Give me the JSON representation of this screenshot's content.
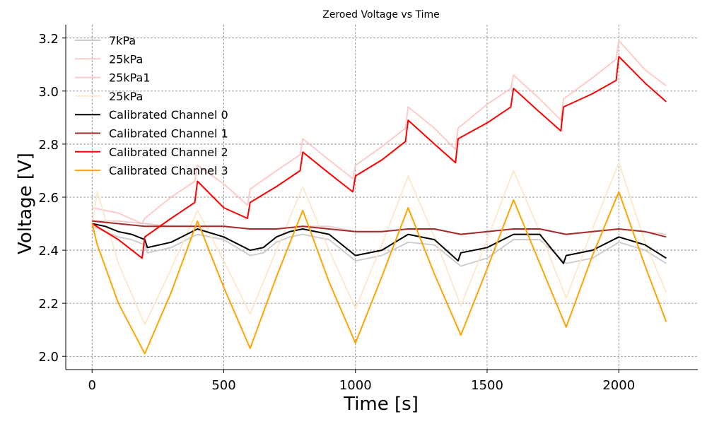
{
  "chart_data": {
    "type": "line",
    "title": "Zeroed Voltage vs Time",
    "xlabel": "Time [s]",
    "ylabel": "Voltage [V]",
    "xlim": [
      -100,
      2300
    ],
    "ylim": [
      1.95,
      3.25
    ],
    "xticks": [
      0,
      500,
      1000,
      1500,
      2000
    ],
    "xtick_labels": [
      "0",
      "500",
      "1000",
      "1500",
      "2000"
    ],
    "yticks": [
      2.0,
      2.2,
      2.4,
      2.6,
      2.8,
      3.0,
      3.2
    ],
    "ytick_labels": [
      "2.0",
      "2.2",
      "2.4",
      "2.6",
      "2.8",
      "3.0",
      "3.2"
    ],
    "grid": true,
    "legend_position": "top-left",
    "series": [
      {
        "name": "7kPa",
        "color": "#c8c8c8",
        "opacity": 0.9,
        "x": [
          0,
          50,
          100,
          150,
          200,
          210,
          300,
          400,
          500,
          600,
          650,
          700,
          750,
          800,
          900,
          1000,
          1100,
          1200,
          1300,
          1400,
          1500,
          1600,
          1700,
          1800,
          1900,
          2000,
          2100,
          2180
        ],
        "y": [
          2.49,
          2.47,
          2.45,
          2.44,
          2.42,
          2.39,
          2.41,
          2.46,
          2.44,
          2.38,
          2.39,
          2.43,
          2.45,
          2.46,
          2.44,
          2.36,
          2.38,
          2.43,
          2.42,
          2.34,
          2.37,
          2.44,
          2.44,
          2.35,
          2.37,
          2.43,
          2.4,
          2.35
        ]
      },
      {
        "name": "25kPa",
        "color": "#f0c8c8",
        "opacity": 0.9,
        "x": [
          0,
          100,
          200,
          300,
          400,
          500,
          600,
          700,
          800,
          900,
          1000,
          1100,
          1200,
          1300,
          1400,
          1500,
          1600,
          1700,
          1800,
          1900,
          2000,
          2100,
          2180
        ],
        "y": [
          2.51,
          2.51,
          2.5,
          2.49,
          2.49,
          2.49,
          2.48,
          2.48,
          2.49,
          2.49,
          2.47,
          2.47,
          2.48,
          2.48,
          2.46,
          2.47,
          2.48,
          2.48,
          2.46,
          2.47,
          2.48,
          2.47,
          2.46
        ]
      },
      {
        "name": "25kPa1",
        "color": "#ffc4c4",
        "opacity": 0.9,
        "x": [
          0,
          100,
          190,
          200,
          300,
          390,
          400,
          500,
          590,
          600,
          700,
          790,
          800,
          900,
          990,
          1000,
          1100,
          1190,
          1200,
          1300,
          1380,
          1390,
          1500,
          1590,
          1600,
          1700,
          1780,
          1790,
          1900,
          1990,
          2000,
          2100,
          2180
        ],
        "y": [
          2.56,
          2.54,
          2.5,
          2.52,
          2.6,
          2.66,
          2.72,
          2.65,
          2.57,
          2.63,
          2.7,
          2.76,
          2.82,
          2.74,
          2.67,
          2.72,
          2.79,
          2.86,
          2.94,
          2.86,
          2.78,
          2.86,
          2.95,
          3.01,
          3.06,
          2.97,
          2.89,
          2.97,
          3.05,
          3.12,
          3.19,
          3.08,
          3.02
        ]
      },
      {
        "name": "25kPa",
        "color": "#fde8c8",
        "opacity": 0.9,
        "x": [
          0,
          20,
          100,
          200,
          300,
          400,
          500,
          600,
          700,
          800,
          900,
          1000,
          1100,
          1200,
          1300,
          1400,
          1500,
          1600,
          1700,
          1800,
          1900,
          2000,
          2100,
          2180
        ],
        "y": [
          2.5,
          2.62,
          2.35,
          2.12,
          2.33,
          2.55,
          2.36,
          2.16,
          2.4,
          2.64,
          2.4,
          2.18,
          2.42,
          2.68,
          2.45,
          2.19,
          2.44,
          2.7,
          2.47,
          2.22,
          2.48,
          2.73,
          2.43,
          2.24
        ]
      },
      {
        "name": "Calibrated Channel 0",
        "color": "#000000",
        "opacity": 1,
        "x": [
          0,
          50,
          100,
          150,
          200,
          210,
          300,
          400,
          500,
          600,
          650,
          700,
          750,
          800,
          900,
          1000,
          1100,
          1200,
          1300,
          1390,
          1400,
          1500,
          1600,
          1700,
          1790,
          1800,
          1900,
          2000,
          2100,
          2180
        ],
        "y": [
          2.5,
          2.49,
          2.47,
          2.46,
          2.44,
          2.41,
          2.43,
          2.48,
          2.45,
          2.4,
          2.41,
          2.45,
          2.47,
          2.48,
          2.46,
          2.38,
          2.4,
          2.46,
          2.44,
          2.36,
          2.39,
          2.41,
          2.46,
          2.46,
          2.35,
          2.38,
          2.4,
          2.45,
          2.42,
          2.37
        ]
      },
      {
        "name": "Calibrated Channel 1",
        "color": "#a52a2a",
        "opacity": 1,
        "x": [
          0,
          100,
          200,
          300,
          400,
          500,
          600,
          700,
          800,
          900,
          1000,
          1100,
          1200,
          1300,
          1400,
          1500,
          1600,
          1700,
          1800,
          1900,
          2000,
          2100,
          2180
        ],
        "y": [
          2.51,
          2.5,
          2.49,
          2.49,
          2.49,
          2.49,
          2.48,
          2.48,
          2.49,
          2.48,
          2.47,
          2.47,
          2.48,
          2.48,
          2.46,
          2.47,
          2.48,
          2.48,
          2.46,
          2.47,
          2.48,
          2.47,
          2.45
        ]
      },
      {
        "name": "Calibrated Channel 2",
        "color": "#ff0000",
        "opacity": 1,
        "x": [
          0,
          100,
          190,
          200,
          300,
          390,
          400,
          500,
          590,
          600,
          700,
          790,
          800,
          900,
          990,
          1000,
          1100,
          1190,
          1200,
          1300,
          1380,
          1390,
          1500,
          1590,
          1600,
          1700,
          1780,
          1790,
          1900,
          1990,
          2000,
          2100,
          2180
        ],
        "y": [
          2.5,
          2.44,
          2.37,
          2.45,
          2.52,
          2.58,
          2.66,
          2.56,
          2.52,
          2.58,
          2.64,
          2.7,
          2.77,
          2.69,
          2.62,
          2.68,
          2.74,
          2.81,
          2.89,
          2.8,
          2.73,
          2.82,
          2.88,
          2.94,
          3.01,
          2.92,
          2.85,
          2.94,
          2.99,
          3.04,
          3.13,
          3.03,
          2.96
        ]
      },
      {
        "name": "Calibrated Channel 3",
        "color": "#ffa500",
        "opacity": 1,
        "x": [
          0,
          20,
          100,
          200,
          300,
          400,
          500,
          600,
          700,
          800,
          900,
          1000,
          1100,
          1200,
          1300,
          1400,
          1500,
          1600,
          1700,
          1800,
          1900,
          2000,
          2100,
          2180
        ],
        "y": [
          2.5,
          2.42,
          2.2,
          2.01,
          2.24,
          2.51,
          2.26,
          2.03,
          2.3,
          2.55,
          2.28,
          2.05,
          2.3,
          2.56,
          2.31,
          2.08,
          2.33,
          2.59,
          2.35,
          2.11,
          2.38,
          2.62,
          2.34,
          2.13
        ]
      }
    ]
  }
}
